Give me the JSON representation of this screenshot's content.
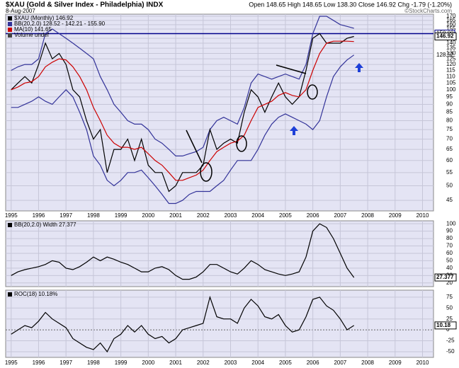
{
  "header": {
    "title": "$XAU (Gold & Silver Index - Philadelphia) INDX",
    "date": "8-Aug-2007",
    "quote": "Open 148.65  High 148.65  Low 138.30  Close 146.92  Chg -1.79 (-1.20%)",
    "credit": "©StockCharts.com"
  },
  "chart_data": [
    {
      "type": "line",
      "log": true,
      "grid": true,
      "xtick_labels": true,
      "x": [
        1995,
        1995.25,
        1995.5,
        1995.75,
        1996,
        1996.25,
        1996.5,
        1996.75,
        1997,
        1997.25,
        1997.5,
        1997.75,
        1998,
        1998.25,
        1998.5,
        1998.75,
        1999,
        1999.25,
        1999.5,
        1999.75,
        2000,
        2000.25,
        2000.5,
        2000.75,
        2001,
        2001.25,
        2001.5,
        2001.75,
        2002,
        2002.25,
        2002.5,
        2002.75,
        2003,
        2003.25,
        2003.5,
        2003.75,
        2004,
        2004.25,
        2004.5,
        2004.75,
        2005,
        2005.25,
        2005.5,
        2005.75,
        2006,
        2006.25,
        2006.5,
        2006.75,
        2007,
        2007.25,
        2007.5
      ],
      "xlim": [
        1994.8,
        2010.4
      ],
      "xticks": [
        1995,
        1996,
        1997,
        1998,
        1999,
        2000,
        2001,
        2002,
        2003,
        2004,
        2005,
        2006,
        2007,
        2008,
        2009,
        2010
      ],
      "ylim": [
        41.7,
        172.6
      ],
      "yticks": [
        45,
        50,
        55,
        60,
        65,
        70,
        75,
        80,
        85,
        90,
        95,
        100,
        105,
        110,
        115,
        120,
        125,
        130,
        135,
        140,
        145,
        150,
        155,
        160,
        165,
        170
      ],
      "series": [
        {
          "name": "$XAU (Monthly) 146.92",
          "color": "#000000",
          "tag": true,
          "values": [
            100,
            105,
            110,
            105,
            120,
            140,
            125,
            130,
            120,
            100,
            95,
            80,
            70,
            75,
            55,
            65,
            65,
            70,
            60,
            70,
            58,
            55,
            55,
            48,
            50,
            55,
            55,
            55,
            58,
            75,
            65,
            68,
            70,
            68,
            85,
            100,
            95,
            85,
            95,
            105,
            95,
            90,
            95,
            115,
            145,
            150,
            140,
            140,
            140,
            145,
            146.92
          ]
        },
        {
          "name": "MA(10) 141.65",
          "color": "#cc0000",
          "tag": false,
          "values": [
            100,
            102,
            105,
            106,
            110,
            118,
            122,
            125,
            124,
            118,
            110,
            100,
            88,
            80,
            72,
            68,
            66,
            66,
            65,
            66,
            63,
            60,
            58,
            55,
            52,
            52,
            53,
            54,
            56,
            60,
            64,
            66,
            68,
            69,
            72,
            80,
            88,
            90,
            92,
            96,
            98,
            96,
            95,
            100,
            115,
            130,
            140,
            142,
            142,
            142,
            141.65
          ]
        }
      ],
      "bands": [
        {
          "name": "BB(20,2.0) 128.52 - 142.21 - 155.90",
          "color": "#333399",
          "upper": [
            115,
            118,
            120,
            120,
            125,
            150,
            155,
            150,
            145,
            140,
            135,
            130,
            125,
            110,
            100,
            90,
            85,
            80,
            78,
            78,
            75,
            70,
            68,
            65,
            62,
            62,
            63,
            64,
            66,
            75,
            80,
            82,
            80,
            78,
            88,
            105,
            112,
            110,
            108,
            110,
            112,
            110,
            108,
            120,
            150,
            170,
            170,
            165,
            160,
            158,
            155.9
          ],
          "lower": [
            88,
            88,
            90,
            92,
            95,
            92,
            90,
            95,
            100,
            95,
            85,
            75,
            62,
            58,
            52,
            50,
            52,
            55,
            55,
            56,
            53,
            50,
            47,
            44,
            44,
            45,
            47,
            48,
            48,
            48,
            50,
            52,
            56,
            60,
            60,
            60,
            65,
            72,
            78,
            82,
            84,
            82,
            80,
            78,
            75,
            80,
            95,
            110,
            118,
            124,
            128.52
          ]
        }
      ],
      "hlines": [
        {
          "value": 150,
          "label": "150.00",
          "color": "#00008b"
        }
      ],
      "notes": [
        "Volume undef"
      ]
    },
    {
      "type": "line",
      "log": false,
      "grid": true,
      "xtick_labels": false,
      "x": [
        1995,
        1995.25,
        1995.5,
        1995.75,
        1996,
        1996.25,
        1996.5,
        1996.75,
        1997,
        1997.25,
        1997.5,
        1997.75,
        1998,
        1998.25,
        1998.5,
        1998.75,
        1999,
        1999.25,
        1999.5,
        1999.75,
        2000,
        2000.25,
        2000.5,
        2000.75,
        2001,
        2001.25,
        2001.5,
        2001.75,
        2002,
        2002.25,
        2002.5,
        2002.75,
        2003,
        2003.25,
        2003.5,
        2003.75,
        2004,
        2004.25,
        2004.5,
        2004.75,
        2005,
        2005.25,
        2005.5,
        2005.75,
        2006,
        2006.25,
        2006.5,
        2006.75,
        2007,
        2007.25,
        2007.5
      ],
      "xlim": [
        1994.8,
        2010.4
      ],
      "xticks": [
        1995,
        1996,
        1997,
        1998,
        1999,
        2000,
        2001,
        2002,
        2003,
        2004,
        2005,
        2006,
        2007,
        2008,
        2009,
        2010
      ],
      "ylim": [
        15,
        104
      ],
      "yticks": [
        20,
        30,
        40,
        50,
        60,
        70,
        80,
        90,
        100
      ],
      "series": [
        {
          "name": "BB(20,2.0) Width 27.377",
          "color": "#000000",
          "tag": true,
          "values": [
            30,
            35,
            38,
            40,
            42,
            45,
            50,
            48,
            40,
            38,
            42,
            48,
            55,
            50,
            55,
            52,
            48,
            45,
            40,
            35,
            35,
            40,
            42,
            38,
            30,
            25,
            25,
            28,
            35,
            45,
            45,
            40,
            35,
            32,
            40,
            50,
            45,
            38,
            35,
            32,
            30,
            32,
            35,
            55,
            90,
            100,
            95,
            80,
            60,
            40,
            27.377
          ]
        }
      ]
    },
    {
      "type": "line",
      "log": false,
      "grid": true,
      "xtick_labels": true,
      "x": [
        1995,
        1995.25,
        1995.5,
        1995.75,
        1996,
        1996.25,
        1996.5,
        1996.75,
        1997,
        1997.25,
        1997.5,
        1997.75,
        1998,
        1998.25,
        1998.5,
        1998.75,
        1999,
        1999.25,
        1999.5,
        1999.75,
        2000,
        2000.25,
        2000.5,
        2000.75,
        2001,
        2001.25,
        2001.5,
        2001.75,
        2002,
        2002.25,
        2002.5,
        2002.75,
        2003,
        2003.25,
        2003.5,
        2003.75,
        2004,
        2004.25,
        2004.5,
        2004.75,
        2005,
        2005.25,
        2005.5,
        2005.75,
        2006,
        2006.25,
        2006.5,
        2006.75,
        2007,
        2007.25,
        2007.5
      ],
      "xlim": [
        1994.8,
        2010.4
      ],
      "xticks": [
        1995,
        1996,
        1997,
        1998,
        1999,
        2000,
        2001,
        2002,
        2003,
        2004,
        2005,
        2006,
        2007,
        2008,
        2009,
        2010
      ],
      "ylim": [
        -63,
        91
      ],
      "yticks": [
        -50,
        -25,
        0,
        25,
        50,
        75
      ],
      "series": [
        {
          "name": "ROC(18) 10.18%",
          "color": "#000000",
          "tag": true,
          "values": [
            -10,
            0,
            10,
            5,
            20,
            40,
            25,
            15,
            5,
            -20,
            -30,
            -40,
            -45,
            -30,
            -50,
            -20,
            -10,
            10,
            -5,
            10,
            -10,
            -20,
            -15,
            -30,
            -20,
            0,
            5,
            10,
            15,
            75,
            30,
            25,
            25,
            15,
            50,
            70,
            55,
            30,
            25,
            35,
            10,
            -5,
            0,
            30,
            70,
            75,
            55,
            45,
            25,
            0,
            10.18
          ]
        }
      ]
    }
  ]
}
